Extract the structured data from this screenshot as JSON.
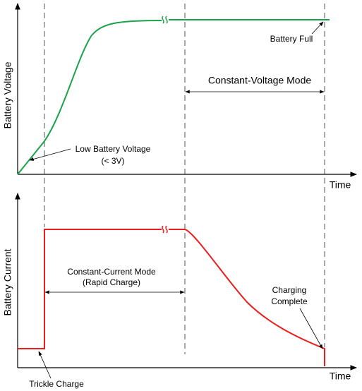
{
  "top_panel": {
    "y_label": "Battery Voltage",
    "x_label": "Time",
    "annotations": {
      "battery_full": "Battery Full",
      "cv_mode": "Constant-Voltage Mode",
      "low_voltage": [
        "Low Battery Voltage",
        "(< 3V)"
      ]
    }
  },
  "bottom_panel": {
    "y_label": "Battery Current",
    "x_label": "Time",
    "annotations": {
      "cc_mode": [
        "Constant-Current Mode",
        "(Rapid Charge)"
      ],
      "complete": [
        "Charging",
        "Complete"
      ],
      "trickle": "Trickle Charge"
    }
  }
}
